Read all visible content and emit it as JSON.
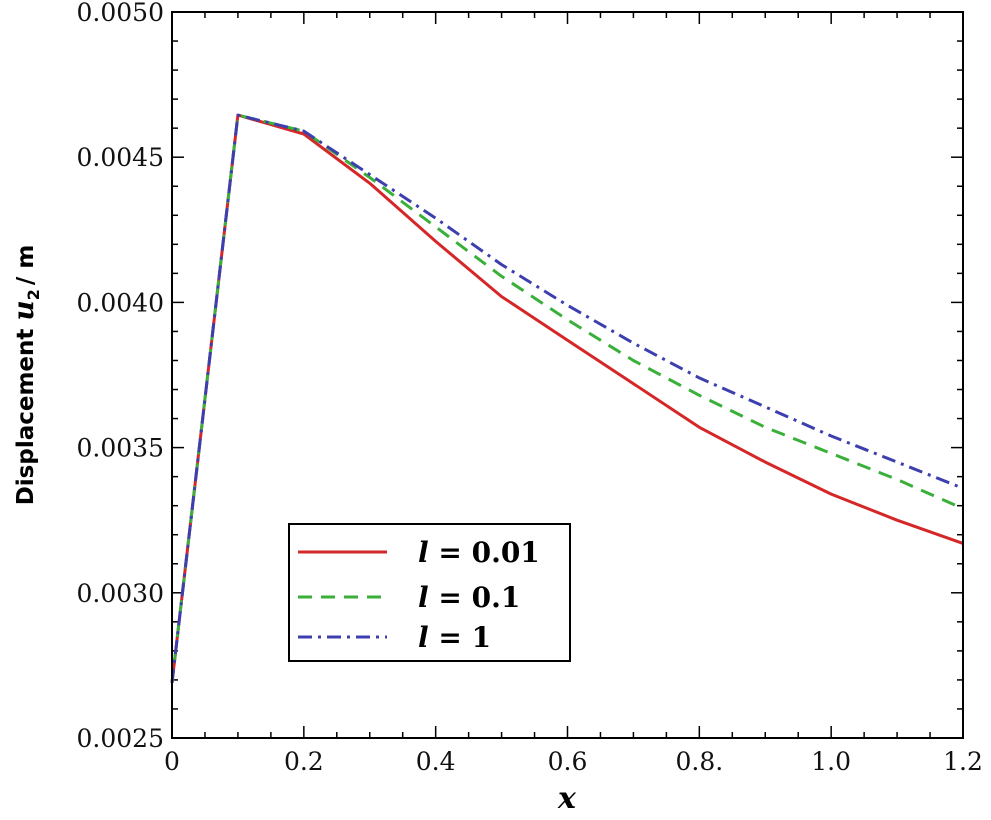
{
  "chart_data": {
    "type": "line",
    "title": "",
    "xlabel": "x",
    "ylabel_prefix": "Displacement ",
    "ylabel_var": "u",
    "ylabel_sub": "2",
    "ylabel_suffix": "/ m",
    "xlim": [
      0,
      1.2
    ],
    "ylim": [
      0.0025,
      0.005
    ],
    "x_ticks": [
      0,
      0.2,
      0.4,
      0.6,
      0.8,
      1.0,
      1.2
    ],
    "x_tick_labels": [
      "0",
      "0.2",
      "0.4",
      "0.6",
      "0.8.",
      "1.0",
      "1.2"
    ],
    "y_ticks": [
      0.0025,
      0.003,
      0.0035,
      0.004,
      0.0045,
      0.005
    ],
    "y_tick_labels": [
      "0.0025",
      "0.0030",
      "0.0035",
      "0.0040",
      "0.0045",
      "0.0050"
    ],
    "grid": false,
    "legend_position": "lower-left",
    "x": [
      0,
      0.1,
      0.2,
      0.3,
      0.4,
      0.5,
      0.6,
      0.7,
      0.8,
      0.9,
      1.0,
      1.1,
      1.2
    ],
    "series": [
      {
        "name": "l = 0.01",
        "label_var": "l",
        "label_rest": " = 0.01",
        "color": "#d62728",
        "dash": "solid",
        "values": [
          0.00269,
          0.004645,
          0.00458,
          0.00441,
          0.00421,
          0.00402,
          0.00387,
          0.00372,
          0.00357,
          0.00345,
          0.00334,
          0.00325,
          0.00317
        ]
      },
      {
        "name": "l = 0.1",
        "label_var": "l",
        "label_rest": " = 0.1",
        "color": "#3ab03a",
        "dash": "dashed",
        "values": [
          0.00269,
          0.004645,
          0.00459,
          0.00443,
          0.00426,
          0.00409,
          0.00394,
          0.0038,
          0.00368,
          0.00357,
          0.00348,
          0.00339,
          0.00329
        ]
      },
      {
        "name": "l = 1",
        "label_var": "l",
        "label_rest": " = 1",
        "color": "#3d3fae",
        "dash": "dashdot",
        "values": [
          0.00269,
          0.004645,
          0.00459,
          0.00444,
          0.00429,
          0.00413,
          0.00399,
          0.00386,
          0.00374,
          0.00364,
          0.00354,
          0.00345,
          0.00336
        ]
      }
    ]
  }
}
